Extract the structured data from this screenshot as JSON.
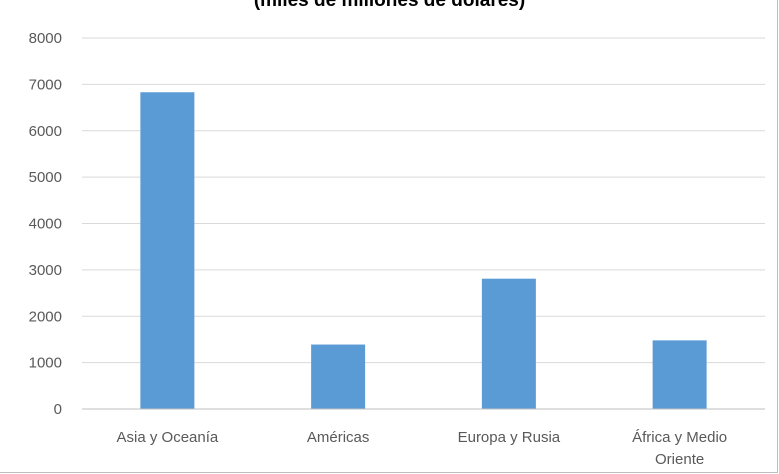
{
  "chart_data": {
    "type": "bar",
    "title": "(miles de millones de dólares)",
    "xlabel": "",
    "ylabel": "",
    "categories": [
      [
        "Asia y Oceanía"
      ],
      [
        "Américas"
      ],
      [
        "Europa y Rusia"
      ],
      [
        "África y Medio",
        "Oriente"
      ]
    ],
    "values": [
      6830,
      1390,
      2810,
      1480
    ],
    "ylim": [
      0,
      8000
    ],
    "yticks": [
      "0",
      "1000",
      "2000",
      "3000",
      "4000",
      "5000",
      "6000",
      "7000",
      "8000"
    ],
    "grid": true,
    "legend": "none",
    "colors": {
      "bar": "#5b9bd5",
      "grid": "#d9d9d9",
      "axis": "#bfbfbf",
      "text": "#595959"
    }
  }
}
